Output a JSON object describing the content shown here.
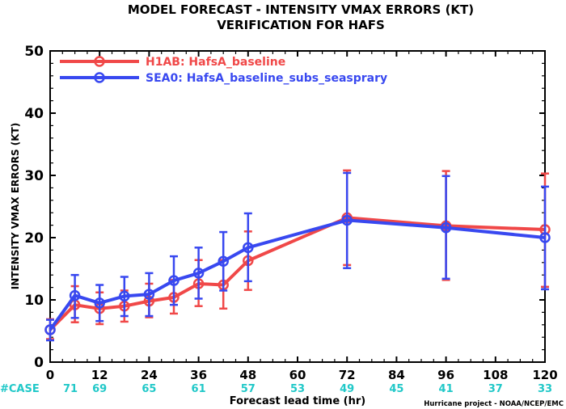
{
  "chart_data": {
    "type": "line",
    "title": "MODEL FORECAST - INTENSITY VMAX ERRORS (KT)",
    "subtitle": "VERIFICATION FOR HAFS",
    "xlabel": "Forecast lead time (hr)",
    "ylabel": "INTENSITY VMAX ERRORS (KT)",
    "credit": "Hurricane project - NOAA/NCEP/EMC",
    "xlim": [
      0,
      120
    ],
    "ylim": [
      0,
      50
    ],
    "x_ticks": [
      0,
      12,
      24,
      36,
      48,
      60,
      72,
      84,
      96,
      108,
      120
    ],
    "y_ticks": [
      0,
      10,
      20,
      30,
      40,
      50
    ],
    "grid": false,
    "legend_position": "top-left",
    "case_label": "#CASE",
    "cases": [
      {
        "x": 0,
        "n": "71"
      },
      {
        "x": 12,
        "n": "69"
      },
      {
        "x": 24,
        "n": "65"
      },
      {
        "x": 36,
        "n": "61"
      },
      {
        "x": 48,
        "n": "57"
      },
      {
        "x": 60,
        "n": "53"
      },
      {
        "x": 72,
        "n": "49"
      },
      {
        "x": 84,
        "n": "45"
      },
      {
        "x": 96,
        "n": "41"
      },
      {
        "x": 108,
        "n": "37"
      },
      {
        "x": 120,
        "n": "33"
      }
    ],
    "series": [
      {
        "name": "H1AB: HafsA_baseline",
        "color": "#f04848",
        "points": [
          {
            "x": 0,
            "y": 5.2,
            "lo": 3.7,
            "hi": 6.9
          },
          {
            "x": 6,
            "y": 9.2,
            "lo": 6.4,
            "hi": 12.2
          },
          {
            "x": 12,
            "y": 8.6,
            "lo": 6.1,
            "hi": 11.2
          },
          {
            "x": 18,
            "y": 9.0,
            "lo": 6.5,
            "hi": 11.5
          },
          {
            "x": 24,
            "y": 9.8,
            "lo": 7.2,
            "hi": 12.6
          },
          {
            "x": 30,
            "y": 10.4,
            "lo": 7.8,
            "hi": 13.2
          },
          {
            "x": 36,
            "y": 12.6,
            "lo": 9.0,
            "hi": 16.4
          },
          {
            "x": 42,
            "y": 12.4,
            "lo": 8.6,
            "hi": 16.4
          },
          {
            "x": 48,
            "y": 16.3,
            "lo": 11.6,
            "hi": 21.0
          },
          {
            "x": 72,
            "y": 23.2,
            "lo": 15.6,
            "hi": 30.8
          },
          {
            "x": 96,
            "y": 21.9,
            "lo": 13.2,
            "hi": 30.7
          },
          {
            "x": 120,
            "y": 21.3,
            "lo": 12.1,
            "hi": 30.3
          }
        ]
      },
      {
        "name": "SEA0: HafsA_baseline_subs_seasprary",
        "color": "#3848f0",
        "points": [
          {
            "x": 0,
            "y": 5.2,
            "lo": 3.5,
            "hi": 6.8
          },
          {
            "x": 6,
            "y": 10.7,
            "lo": 7.1,
            "hi": 14.0
          },
          {
            "x": 12,
            "y": 9.5,
            "lo": 6.6,
            "hi": 12.4
          },
          {
            "x": 18,
            "y": 10.6,
            "lo": 7.4,
            "hi": 13.7
          },
          {
            "x": 24,
            "y": 10.9,
            "lo": 7.4,
            "hi": 14.3
          },
          {
            "x": 30,
            "y": 13.1,
            "lo": 9.2,
            "hi": 17.0
          },
          {
            "x": 36,
            "y": 14.3,
            "lo": 10.2,
            "hi": 18.4
          },
          {
            "x": 42,
            "y": 16.2,
            "lo": 11.5,
            "hi": 20.9
          },
          {
            "x": 48,
            "y": 18.4,
            "lo": 13.0,
            "hi": 23.9
          },
          {
            "x": 72,
            "y": 22.8,
            "lo": 15.1,
            "hi": 30.4
          },
          {
            "x": 96,
            "y": 21.6,
            "lo": 13.4,
            "hi": 29.9
          },
          {
            "x": 120,
            "y": 20.0,
            "lo": 11.7,
            "hi": 28.2
          }
        ]
      }
    ]
  }
}
